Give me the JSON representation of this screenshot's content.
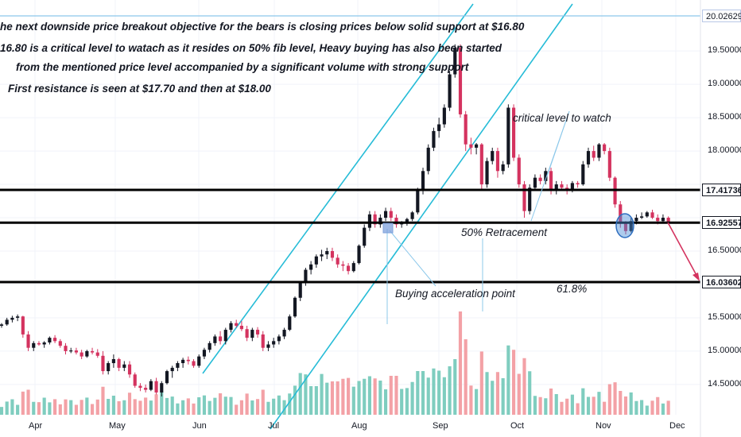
{
  "chart_data": {
    "type": "candlestick",
    "price_axis": {
      "range": [
        14.1,
        20.15
      ],
      "ticks": [
        "19.50000",
        "19.00000",
        "18.50000",
        "18.00000",
        "16.50000",
        "15.50000",
        "15.00000",
        "14.50000"
      ],
      "labels": [
        {
          "text": "20.02629",
          "value": 20.02629,
          "style": "plain"
        },
        {
          "text": "17.41736",
          "value": 17.41736,
          "style": "boxed"
        },
        {
          "text": "16.92557",
          "value": 16.92557,
          "style": "boxed"
        },
        {
          "text": "16.03602",
          "value": 16.03602,
          "style": "boxed"
        }
      ]
    },
    "x_axis": {
      "months": [
        "Apr",
        "May",
        "Jun",
        "Jul",
        "Aug",
        "Sep",
        "Oct",
        "Nov",
        "Dec"
      ]
    },
    "horizontal_levels": [
      20.02629,
      17.41736,
      16.92557,
      16.03602
    ],
    "colors": {
      "up": "#131722",
      "down": "#d4335f",
      "vol_up": "#7fcdbf",
      "vol_down": "#f3a1a6",
      "channel": "#26bcd7",
      "level": "#000000",
      "annot": "#8cc8ea",
      "arrow": "#d4335f"
    },
    "candles": [
      [
        15.38,
        15.42,
        15.35,
        15.4
      ],
      [
        15.4,
        15.5,
        15.38,
        15.47
      ],
      [
        15.47,
        15.53,
        15.43,
        15.5
      ],
      [
        15.5,
        15.55,
        15.45,
        15.52
      ],
      [
        15.52,
        15.53,
        15.2,
        15.25
      ],
      [
        15.25,
        15.3,
        15.0,
        15.05
      ],
      [
        15.05,
        15.15,
        15.0,
        15.12
      ],
      [
        15.12,
        15.15,
        15.08,
        15.1
      ],
      [
        15.1,
        15.15,
        15.05,
        15.13
      ],
      [
        15.13,
        15.22,
        15.1,
        15.2
      ],
      [
        15.2,
        15.24,
        15.12,
        15.15
      ],
      [
        15.15,
        15.18,
        15.05,
        15.08
      ],
      [
        15.08,
        15.12,
        14.95,
        15.0
      ],
      [
        15.0,
        15.05,
        14.97,
        15.01
      ],
      [
        15.01,
        15.05,
        14.95,
        14.98
      ],
      [
        14.98,
        15.02,
        14.88,
        14.92
      ],
      [
        14.92,
        15.02,
        14.9,
        15.0
      ],
      [
        15.0,
        15.05,
        14.95,
        14.98
      ],
      [
        14.98,
        15.03,
        14.9,
        14.93
      ],
      [
        14.93,
        15.0,
        14.65,
        14.7
      ],
      [
        14.7,
        14.85,
        14.65,
        14.82
      ],
      [
        14.82,
        14.95,
        14.75,
        14.88
      ],
      [
        14.88,
        14.9,
        14.7,
        14.75
      ],
      [
        14.75,
        14.85,
        14.7,
        14.8
      ],
      [
        14.8,
        14.85,
        14.6,
        14.65
      ],
      [
        14.65,
        14.68,
        14.45,
        14.48
      ],
      [
        14.48,
        14.52,
        14.4,
        14.45
      ],
      [
        14.45,
        14.5,
        14.38,
        14.42
      ],
      [
        14.42,
        14.58,
        14.4,
        14.55
      ],
      [
        14.55,
        14.6,
        14.35,
        14.38
      ],
      [
        14.38,
        14.55,
        14.32,
        14.52
      ],
      [
        14.52,
        14.72,
        14.5,
        14.7
      ],
      [
        14.7,
        14.78,
        14.6,
        14.75
      ],
      [
        14.75,
        14.85,
        14.7,
        14.82
      ],
      [
        14.82,
        14.9,
        14.75,
        14.87
      ],
      [
        14.87,
        14.92,
        14.8,
        14.85
      ],
      [
        14.85,
        14.88,
        14.75,
        14.78
      ],
      [
        14.78,
        14.95,
        14.75,
        14.92
      ],
      [
        14.92,
        15.05,
        14.88,
        15.02
      ],
      [
        15.02,
        15.15,
        14.98,
        15.12
      ],
      [
        15.12,
        15.25,
        15.08,
        15.22
      ],
      [
        15.22,
        15.3,
        15.1,
        15.15
      ],
      [
        15.15,
        15.35,
        15.1,
        15.32
      ],
      [
        15.32,
        15.45,
        15.28,
        15.42
      ],
      [
        15.42,
        15.47,
        15.35,
        15.38
      ],
      [
        15.38,
        15.45,
        15.3,
        15.33
      ],
      [
        15.33,
        15.38,
        15.15,
        15.2
      ],
      [
        15.2,
        15.35,
        15.15,
        15.32
      ],
      [
        15.32,
        15.36,
        15.2,
        15.25
      ],
      [
        15.25,
        15.3,
        15.0,
        15.05
      ],
      [
        15.05,
        15.15,
        15.0,
        15.1
      ],
      [
        15.1,
        15.2,
        15.05,
        15.15
      ],
      [
        15.15,
        15.25,
        15.1,
        15.22
      ],
      [
        15.22,
        15.35,
        15.18,
        15.32
      ],
      [
        15.32,
        15.55,
        15.3,
        15.52
      ],
      [
        15.52,
        15.82,
        15.5,
        15.8
      ],
      [
        15.8,
        16.05,
        15.75,
        16.02
      ],
      [
        16.02,
        16.25,
        15.98,
        16.22
      ],
      [
        16.22,
        16.35,
        16.15,
        16.3
      ],
      [
        16.3,
        16.45,
        16.25,
        16.42
      ],
      [
        16.42,
        16.52,
        16.35,
        16.45
      ],
      [
        16.45,
        16.55,
        16.38,
        16.5
      ],
      [
        16.5,
        16.55,
        16.35,
        16.4
      ],
      [
        16.4,
        16.45,
        16.25,
        16.3
      ],
      [
        16.3,
        16.35,
        16.2,
        16.28
      ],
      [
        16.28,
        16.32,
        16.15,
        16.2
      ],
      [
        16.2,
        16.35,
        16.18,
        16.32
      ],
      [
        16.32,
        16.6,
        16.3,
        16.58
      ],
      [
        16.58,
        16.9,
        16.55,
        16.85
      ],
      [
        16.85,
        17.1,
        16.8,
        17.05
      ],
      [
        17.05,
        17.1,
        16.85,
        16.9
      ],
      [
        16.9,
        17.05,
        16.85,
        17.0
      ],
      [
        17.0,
        17.15,
        16.95,
        17.1
      ],
      [
        17.1,
        17.15,
        16.95,
        17.0
      ],
      [
        17.0,
        17.05,
        16.85,
        16.9
      ],
      [
        16.9,
        16.95,
        16.85,
        16.93
      ],
      [
        16.93,
        17.0,
        16.88,
        16.98
      ],
      [
        16.98,
        17.1,
        16.95,
        17.08
      ],
      [
        17.08,
        17.45,
        17.05,
        17.4
      ],
      [
        17.4,
        17.75,
        17.35,
        17.7
      ],
      [
        17.7,
        18.1,
        17.65,
        18.05
      ],
      [
        18.05,
        18.35,
        18.0,
        18.3
      ],
      [
        18.3,
        18.5,
        18.2,
        18.4
      ],
      [
        18.4,
        18.7,
        18.35,
        18.65
      ],
      [
        18.65,
        19.2,
        18.6,
        19.15
      ],
      [
        19.15,
        19.6,
        19.1,
        19.55
      ],
      [
        19.55,
        19.6,
        18.5,
        18.55
      ],
      [
        18.55,
        18.6,
        18.0,
        18.1
      ],
      [
        18.1,
        18.2,
        17.95,
        18.05
      ],
      [
        18.05,
        18.12,
        17.95,
        18.1
      ],
      [
        18.1,
        18.12,
        17.4,
        17.5
      ],
      [
        17.5,
        17.9,
        17.45,
        17.85
      ],
      [
        17.85,
        18.05,
        17.8,
        18.0
      ],
      [
        18.0,
        18.05,
        17.6,
        17.7
      ],
      [
        17.7,
        17.85,
        17.65,
        17.8
      ],
      [
        17.8,
        18.7,
        17.75,
        18.65
      ],
      [
        18.65,
        18.7,
        17.85,
        17.9
      ],
      [
        17.9,
        17.95,
        17.45,
        17.5
      ],
      [
        17.5,
        17.55,
        17.0,
        17.1
      ],
      [
        17.1,
        17.5,
        17.05,
        17.45
      ],
      [
        17.45,
        17.65,
        17.4,
        17.6
      ],
      [
        17.6,
        17.65,
        17.5,
        17.55
      ],
      [
        17.55,
        17.75,
        17.5,
        17.7
      ],
      [
        17.7,
        17.75,
        17.35,
        17.4
      ],
      [
        17.4,
        17.55,
        17.35,
        17.5
      ],
      [
        17.5,
        17.55,
        17.4,
        17.45
      ],
      [
        17.45,
        17.5,
        17.35,
        17.4
      ],
      [
        17.4,
        17.55,
        17.38,
        17.52
      ],
      [
        17.52,
        17.55,
        17.45,
        17.5
      ],
      [
        17.5,
        17.85,
        17.48,
        17.8
      ],
      [
        17.8,
        18.05,
        17.75,
        18.0
      ],
      [
        18.0,
        18.08,
        17.85,
        17.9
      ],
      [
        17.9,
        18.12,
        17.85,
        18.1
      ],
      [
        18.1,
        18.12,
        17.95,
        18.0
      ],
      [
        18.0,
        18.05,
        17.55,
        17.6
      ],
      [
        17.6,
        17.62,
        17.15,
        17.2
      ],
      [
        17.2,
        17.25,
        16.85,
        16.92
      ],
      [
        16.92,
        16.95,
        16.75,
        16.8
      ],
      [
        16.8,
        17.0,
        16.78,
        16.95
      ],
      [
        16.95,
        17.05,
        16.9,
        17.0
      ],
      [
        17.0,
        17.08,
        16.98,
        17.02
      ],
      [
        17.02,
        17.1,
        17.0,
        17.08
      ],
      [
        17.08,
        17.12,
        16.98,
        17.0
      ],
      [
        17.0,
        17.05,
        16.9,
        16.95
      ],
      [
        16.95,
        17.05,
        16.92,
        17.0
      ],
      [
        17.0,
        17.02,
        16.9,
        16.93
      ]
    ],
    "annotations": {
      "line1": "he next downside price breakout objective for the bears is closing prices below solid support at $16.80",
      "line2": "16.80 is a critical level to watach as it resides on 50% fib level, Heavy buying has also been started",
      "line3": "from the mentioned price level accompanied by a significant volume with strong support",
      "line4": "First resistance is seen at $17.70 and then at $18.00",
      "critical": "critical level to watch",
      "fib50": "50% Retracement",
      "buying": "Buying acceleration point",
      "fib618": "61.8%"
    }
  }
}
